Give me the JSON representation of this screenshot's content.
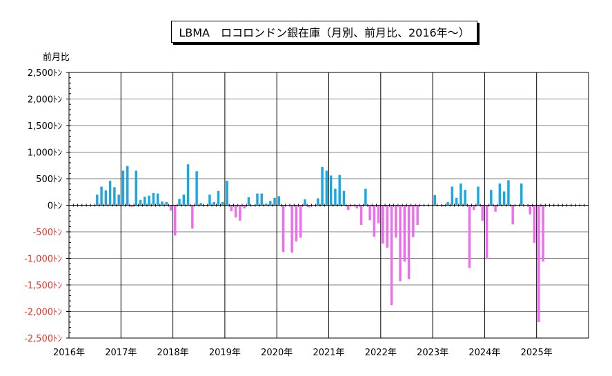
{
  "chart_data": {
    "type": "bar",
    "title": "LBMA　ロコロンドン銀在庫（月別、前月比、2016年～）",
    "ylabel": "前月比",
    "ylim": [
      -2500,
      2500
    ],
    "y_ticks": [
      {
        "value": 2500,
        "label": "2,500ﾄﾝ"
      },
      {
        "value": 2000,
        "label": "2,000ﾄﾝ"
      },
      {
        "value": 1500,
        "label": "1,500ﾄﾝ"
      },
      {
        "value": 1000,
        "label": "1,000ﾄﾝ"
      },
      {
        "value": 500,
        "label": "500ﾄﾝ"
      },
      {
        "value": 0,
        "label": "0ﾄﾝ"
      },
      {
        "value": -500,
        "label": "-500ﾄﾝ"
      },
      {
        "value": -1000,
        "label": "-1,000ﾄﾝ"
      },
      {
        "value": -1500,
        "label": "-1,500ﾄﾝ"
      },
      {
        "value": -2000,
        "label": "-2,000ﾄﾝ"
      },
      {
        "value": -2500,
        "label": "-2,500ﾄﾝ"
      }
    ],
    "x_tick_labels": [
      "2016年",
      "2017年",
      "2018年",
      "2019年",
      "2020年",
      "2021年",
      "2022年",
      "2023年",
      "2024年",
      "2025年"
    ],
    "x_start_year": 2016,
    "grid": true,
    "colors": {
      "positive": "#1aa7e0",
      "negative": "#ee6cee",
      "negative_tick_label": "#e8322a"
    },
    "series": [
      {
        "x": [
          "2016-07",
          "2016-08",
          "2016-09",
          "2016-10",
          "2016-11",
          "2016-12",
          "2017-01",
          "2017-02",
          "2017-03",
          "2017-04",
          "2017-05",
          "2017-06",
          "2017-07",
          "2017-08",
          "2017-09",
          "2017-10",
          "2017-11",
          "2017-12",
          "2018-01",
          "2018-02",
          "2018-03",
          "2018-04",
          "2018-05",
          "2018-06",
          "2018-07",
          "2018-08",
          "2018-09",
          "2018-10",
          "2018-11",
          "2018-12",
          "2019-01",
          "2019-02",
          "2019-03",
          "2019-04",
          "2019-05",
          "2019-06",
          "2019-07",
          "2019-08",
          "2019-09",
          "2019-10",
          "2019-11",
          "2019-12",
          "2020-01",
          "2020-02",
          "2020-03",
          "2020-04",
          "2020-05",
          "2020-06",
          "2020-07",
          "2020-08",
          "2020-09",
          "2020-10",
          "2020-11",
          "2020-12",
          "2021-01",
          "2021-02",
          "2021-03",
          "2021-04",
          "2021-05",
          "2021-06",
          "2021-07",
          "2021-08",
          "2021-09",
          "2021-10",
          "2021-11",
          "2021-12",
          "2022-01",
          "2022-02",
          "2022-03",
          "2022-04",
          "2022-05",
          "2022-06",
          "2022-07",
          "2022-08",
          "2022-09",
          "2022-10",
          "2022-11",
          "2022-12",
          "2023-01",
          "2023-02",
          "2023-03",
          "2023-04",
          "2023-05",
          "2023-06",
          "2023-07",
          "2023-08",
          "2023-09",
          "2023-10",
          "2023-11",
          "2023-12",
          "2024-01",
          "2024-02",
          "2024-03",
          "2024-04",
          "2024-05",
          "2024-06",
          "2024-07",
          "2024-08",
          "2024-09",
          "2024-10",
          "2024-11",
          "2024-12",
          "2025-01",
          "2025-02"
        ],
        "values": [
          200,
          350,
          280,
          460,
          340,
          200,
          650,
          740,
          -30,
          650,
          100,
          160,
          180,
          230,
          220,
          70,
          60,
          -100,
          -570,
          120,
          200,
          770,
          -440,
          640,
          40,
          0,
          200,
          60,
          270,
          60,
          460,
          -110,
          -230,
          -290,
          -60,
          150,
          0,
          220,
          220,
          30,
          80,
          140,
          170,
          -880,
          0,
          -890,
          -680,
          -610,
          110,
          -40,
          0,
          130,
          720,
          650,
          560,
          310,
          570,
          270,
          -90,
          -20,
          -60,
          -370,
          310,
          -280,
          -590,
          -340,
          -720,
          -800,
          -1880,
          -610,
          -1430,
          -1060,
          -1390,
          -600,
          -370,
          0,
          0,
          0,
          190,
          0,
          -20,
          60,
          350,
          140,
          410,
          290,
          -1180,
          -90,
          350,
          -290,
          -1010,
          290,
          -120,
          410,
          260,
          470,
          -360,
          0,
          410,
          0,
          -170,
          -710,
          -2200,
          -1060
        ]
      }
    ]
  }
}
